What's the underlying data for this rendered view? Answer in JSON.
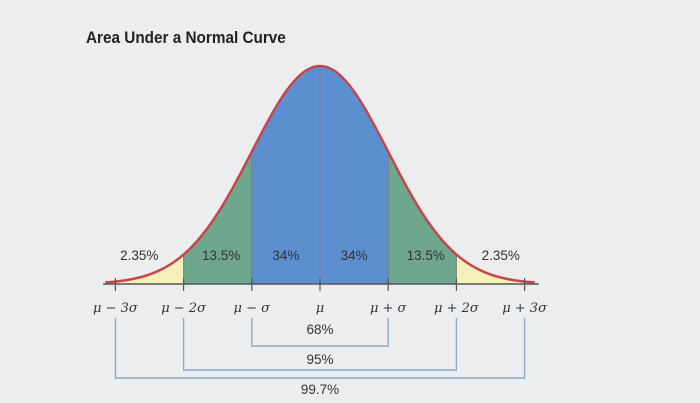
{
  "chart_data": {
    "type": "area",
    "title": "Area Under a Normal Curve",
    "x_ticks": [
      -3,
      -2,
      -1,
      0,
      1,
      2,
      3
    ],
    "tick_labels": [
      "μ − 3σ",
      "μ − 2σ",
      "μ − σ",
      "μ",
      "μ + σ",
      "μ + 2σ",
      "μ + 3σ"
    ],
    "regions": [
      {
        "from": -3,
        "to": -2,
        "label": "2.35%",
        "value": 2.35,
        "color": "#f4f0b9"
      },
      {
        "from": -2,
        "to": -1,
        "label": "13.5%",
        "value": 13.5,
        "color": "#6fa68e"
      },
      {
        "from": -1,
        "to": 0,
        "label": "34%",
        "value": 34,
        "color": "#5b8fd0"
      },
      {
        "from": 0,
        "to": 1,
        "label": "34%",
        "value": 34,
        "color": "#5b8fd0"
      },
      {
        "from": 1,
        "to": 2,
        "label": "13.5%",
        "value": 13.5,
        "color": "#6fa68e"
      },
      {
        "from": 2,
        "to": 3,
        "label": "2.35%",
        "value": 2.35,
        "color": "#f4f0b9"
      }
    ],
    "spans": [
      {
        "from": -1,
        "to": 1,
        "label": "68%",
        "value": 68
      },
      {
        "from": -2,
        "to": 2,
        "label": "95%",
        "value": 95
      },
      {
        "from": -3,
        "to": 3,
        "label": "99.7%",
        "value": 99.7
      }
    ],
    "curve_color": "#c8444a",
    "xlabel": "",
    "ylabel": ""
  }
}
